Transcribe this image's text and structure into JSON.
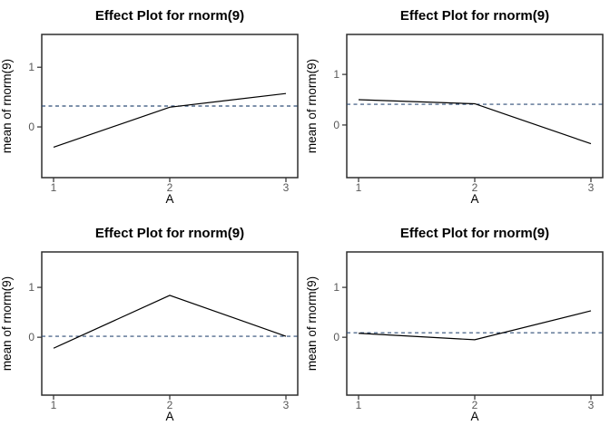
{
  "page": {
    "background": "#ffffff"
  },
  "colors": {
    "solid_line": "#000000",
    "dashed_line": "#2f4d77",
    "tick_label": "#585858",
    "axis_label": "#000000",
    "title": "#000000",
    "panel_border": "#2e2e2e"
  },
  "chart_data": [
    {
      "type": "line",
      "title": "Effect Plot for rnorm(9)",
      "xlabel": "A",
      "ylabel": "mean of rnorm(9)",
      "x": [
        1,
        2,
        3
      ],
      "y": [
        -0.34,
        0.33,
        0.56
      ],
      "reference_line": {
        "y": 0.35,
        "style": "dashed",
        "color": "#2f4d77"
      },
      "ylim": [
        -0.85,
        1.55
      ],
      "yticks": [
        0,
        1
      ],
      "xticks": [
        1,
        2,
        3
      ],
      "grid": false,
      "legend": false
    },
    {
      "type": "line",
      "title": "Effect Plot for rnorm(9)",
      "xlabel": "A",
      "ylabel": "mean of rnorm(9)",
      "x": [
        1,
        2,
        3
      ],
      "y": [
        0.5,
        0.42,
        -0.37
      ],
      "reference_line": {
        "y": 0.41,
        "style": "dashed",
        "color": "#2f4d77"
      },
      "ylim": [
        -1.04,
        1.79
      ],
      "yticks": [
        0,
        1
      ],
      "xticks": [
        1,
        2,
        3
      ],
      "grid": false,
      "legend": false
    },
    {
      "type": "line",
      "title": "Effect Plot for rnorm(9)",
      "xlabel": "A",
      "ylabel": "mean of rnorm(9)",
      "x": [
        1,
        2,
        3
      ],
      "y": [
        -0.22,
        0.84,
        0.02
      ],
      "reference_line": {
        "y": 0.02,
        "style": "dashed",
        "color": "#2f4d77"
      },
      "ylim": [
        -1.16,
        1.71
      ],
      "yticks": [
        0,
        1
      ],
      "xticks": [
        1,
        2,
        3
      ],
      "grid": false,
      "legend": false
    },
    {
      "type": "line",
      "title": "Effect Plot for rnorm(9)",
      "xlabel": "A",
      "ylabel": "mean of rnorm(9)",
      "x": [
        1,
        2,
        3
      ],
      "y": [
        0.08,
        -0.05,
        0.53
      ],
      "reference_line": {
        "y": 0.09,
        "style": "dashed",
        "color": "#2f4d77"
      },
      "ylim": [
        -1.16,
        1.71
      ],
      "yticks": [
        0,
        1
      ],
      "xticks": [
        1,
        2,
        3
      ],
      "grid": false,
      "legend": false
    }
  ]
}
